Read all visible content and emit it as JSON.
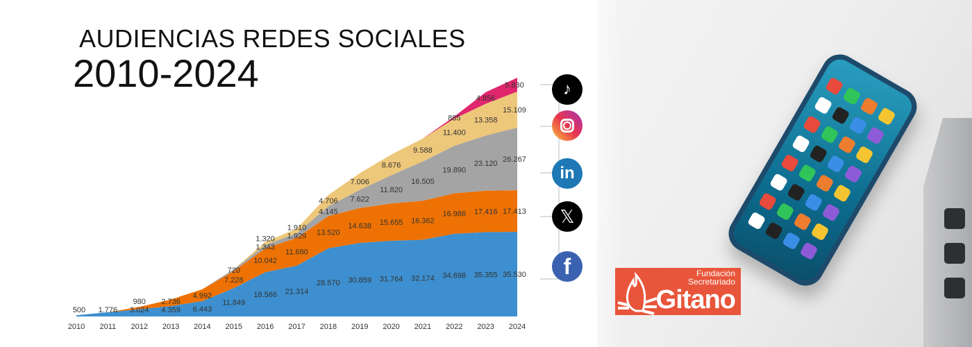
{
  "chart_data": {
    "type": "area",
    "stacked": true,
    "title": "AUDIENCIAS REDES SOCIALES",
    "subtitle": "2010-2024",
    "xlabel": "",
    "ylabel": "",
    "categories": [
      "2010",
      "2011",
      "2012",
      "2013",
      "2014",
      "2015",
      "2016",
      "2017",
      "2018",
      "2019",
      "2020",
      "2021",
      "2022",
      "2023",
      "2024"
    ],
    "ylim": [
      0,
      100149
    ],
    "grid": false,
    "series": [
      {
        "name": "Facebook",
        "icon": "facebook-icon",
        "color": "#3d8fcf",
        "values": [
          500,
          1776,
          3024,
          4359,
          6443,
          11849,
          18566,
          21314,
          28570,
          30859,
          31764,
          32174,
          34698,
          35355,
          35530
        ],
        "labels": [
          "500",
          "1.776",
          "3.024",
          "4.359",
          "6.443",
          "11.849",
          "18.566",
          "21.314",
          "28.570",
          "30.859",
          "31.764",
          "32.174",
          "34.698",
          "35.355",
          "35.530"
        ]
      },
      {
        "name": "X",
        "icon": "x-icon",
        "color": "#ee7203",
        "values": [
          0,
          0,
          980,
          2736,
          4992,
          7228,
          10042,
          11680,
          13520,
          14638,
          15655,
          16362,
          16986,
          17416,
          17413
        ],
        "labels": [
          null,
          null,
          "980",
          "2.736",
          "4.992",
          "7.228",
          "10.042",
          "11.680",
          "13.520",
          "14.638",
          "15.655",
          "16.362",
          "16.986",
          "17.416",
          "17.413"
        ]
      },
      {
        "name": "LinkedIn",
        "icon": "linkedin-icon",
        "color": "#a5a4a4",
        "values": [
          0,
          0,
          0,
          0,
          0,
          720,
          1343,
          1929,
          4145,
          7622,
          11820,
          16505,
          19890,
          23120,
          26267
        ],
        "labels": [
          null,
          null,
          null,
          null,
          null,
          "720",
          "1.343",
          "1.929",
          "4.145",
          "7.622",
          "11.820",
          "16.505",
          "19.890",
          "23.120",
          "26.267"
        ]
      },
      {
        "name": "Instagram",
        "icon": "instagram-icon",
        "color": "#edc77a",
        "values": [
          0,
          0,
          0,
          0,
          0,
          0,
          1320,
          1910,
          4706,
          7006,
          8676,
          9588,
          11400,
          13358,
          15109
        ],
        "labels": [
          null,
          null,
          null,
          null,
          null,
          null,
          "1.320",
          "1.910",
          "4.706",
          "7.006",
          "8.676",
          "9.588",
          "11.400",
          "13.358",
          "15.109"
        ]
      },
      {
        "name": "TikTok",
        "icon": "tiktok-icon",
        "color": "#e0266c",
        "values": [
          0,
          0,
          0,
          0,
          0,
          0,
          0,
          0,
          0,
          0,
          0,
          0,
          885,
          4856,
          5830
        ],
        "labels": [
          null,
          null,
          null,
          null,
          null,
          null,
          null,
          null,
          null,
          null,
          null,
          null,
          "885",
          "4.856",
          "5.830"
        ]
      }
    ]
  },
  "logo": {
    "line1": "Fundación",
    "line2": "Secretariado",
    "line3": "Gitano"
  }
}
